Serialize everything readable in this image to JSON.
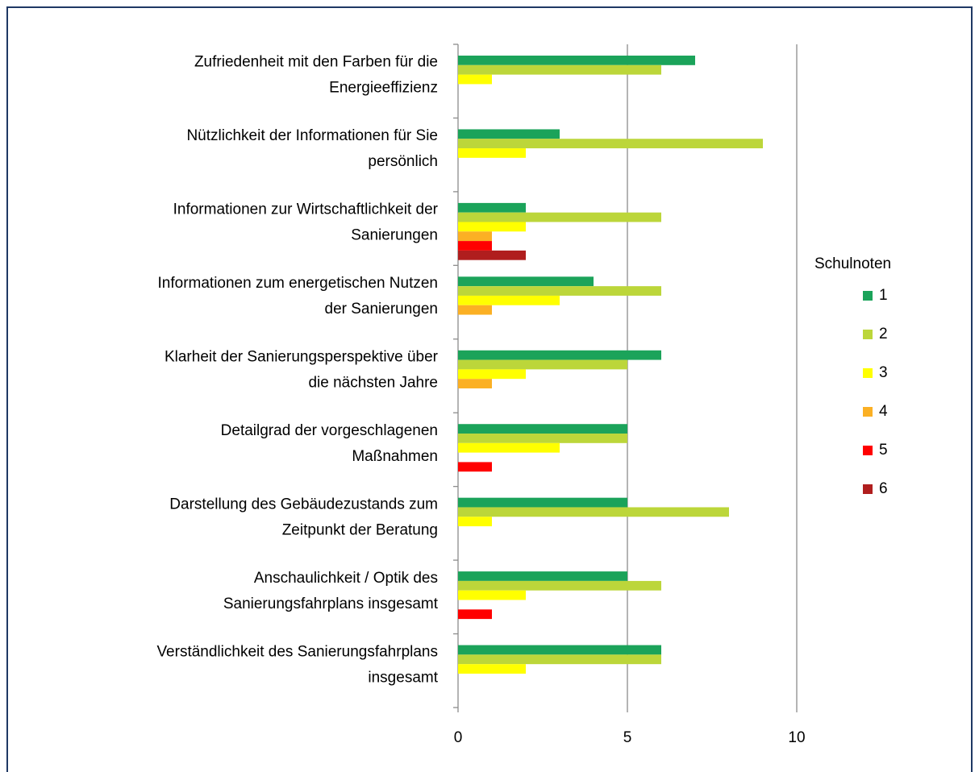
{
  "chart_data": {
    "type": "bar",
    "orientation": "horizontal",
    "categories": [
      [
        "Zufriedenheit mit den Farben für die",
        "Energieeffizienz"
      ],
      [
        "Nützlichkeit der Informationen für Sie",
        "persönlich"
      ],
      [
        "Informationen zur Wirtschaftlichkeit der",
        "Sanierungen"
      ],
      [
        "Informationen zum energetischen Nutzen",
        "der Sanierungen"
      ],
      [
        "Klarheit der Sanierungsperspektive über",
        "die nächsten Jahre"
      ],
      [
        "Detailgrad der vorgeschlagenen",
        "Maßnahmen"
      ],
      [
        "Darstellung des Gebäudezustands zum",
        "Zeitpunkt der Beratung"
      ],
      [
        "Anschaulichkeit / Optik des",
        "Sanierungsfahrplans insgesamt"
      ],
      [
        "Verständlichkeit des Sanierungsfahrplans",
        "insgesamt"
      ]
    ],
    "legend_title": "Schulnoten",
    "series": [
      {
        "name": "1",
        "color": "#1ba35a",
        "values": [
          7,
          3,
          2,
          4,
          6,
          5,
          5,
          5,
          6
        ]
      },
      {
        "name": "2",
        "color": "#bcd63a",
        "values": [
          6,
          9,
          6,
          6,
          5,
          5,
          8,
          6,
          6
        ]
      },
      {
        "name": "3",
        "color": "#ffff00",
        "values": [
          1,
          2,
          2,
          3,
          2,
          3,
          1,
          2,
          2
        ]
      },
      {
        "name": "4",
        "color": "#fbb024",
        "values": [
          0,
          0,
          1,
          1,
          1,
          0,
          0,
          0,
          0
        ]
      },
      {
        "name": "5",
        "color": "#ff0000",
        "values": [
          0,
          0,
          1,
          0,
          0,
          1,
          0,
          1,
          0
        ]
      },
      {
        "name": "6",
        "color": "#b01e1e",
        "values": [
          0,
          0,
          2,
          0,
          0,
          0,
          0,
          0,
          0
        ]
      }
    ],
    "xlim": [
      0,
      10
    ],
    "xticks": [
      0,
      5,
      10
    ],
    "grid": true,
    "legend": "right"
  }
}
